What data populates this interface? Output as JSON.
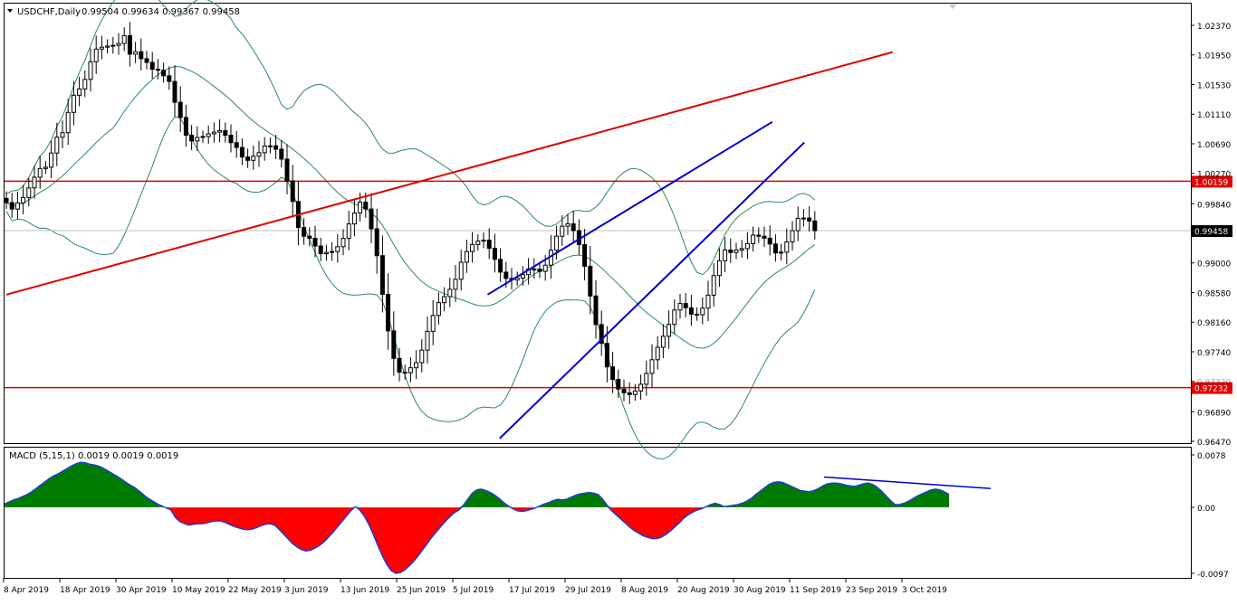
{
  "window": {
    "menu_arrow_icon": "triangle-down-icon",
    "symbol": "USDCHF,Daily",
    "ohlc": "0.99504 0.99634 0.99367 0.99458"
  },
  "macd_header": "MACD (5,15,1) 0.0019 0.0019 0.0019",
  "colors": {
    "background": "#ffffff",
    "candle_up_body": "#ffffff",
    "candle_down_body": "#000000",
    "bollinger": "#2e8b57",
    "horizontal_level": "#e00000",
    "red_trendline": "#e00000",
    "channel_lines": "#0000cc",
    "macd_positive": "#007a00",
    "macd_negative": "#ff0000",
    "macd_line": "#1e3cd0",
    "price_label_bg": "#e00000",
    "current_label_bg": "#000000"
  },
  "chart_data": [
    {
      "type": "candlestick",
      "symbol": "USDCHF",
      "timeframe": "Daily",
      "y_ticks": [
        "1.02370",
        "1.01950",
        "1.01530",
        "1.01110",
        "1.00690",
        "1.00270",
        "0.99840",
        "0.99420",
        "0.99000",
        "0.98580",
        "0.98160",
        "0.97740",
        "0.97320",
        "0.96890",
        "0.96470"
      ],
      "ylim": [
        0.9647,
        1.0268
      ],
      "x_ticks": [
        "8 Apr 2019",
        "18 Apr 2019",
        "30 Apr 2019",
        "10 May 2019",
        "22 May 2019",
        "3 Jun 2019",
        "13 Jun 2019",
        "25 Jun 2019",
        "5 Jul 2019",
        "17 Jul 2019",
        "29 Jul 2019",
        "8 Aug 2019",
        "20 Aug 2019",
        "30 Aug 2019",
        "11 Sep 2019",
        "23 Sep 2019",
        "3 Oct 2019"
      ],
      "horizontal_levels": [
        {
          "label": "1.00159",
          "value": 1.00159
        },
        {
          "label": "0.97232",
          "value": 0.97232
        }
      ],
      "current_price": {
        "label": "0.99458",
        "value": 0.99458
      },
      "closes": [
        0.99856,
        0.99764,
        0.99852,
        0.99928,
        1.00064,
        1.00216,
        1.00339,
        1.00358,
        1.00559,
        1.00783,
        1.00847,
        1.01135,
        1.01378,
        1.01468,
        1.01603,
        1.01853,
        1.02033,
        1.0206,
        1.02075,
        1.02086,
        1.02112,
        1.02223,
        1.01961,
        1.01996,
        1.01897,
        1.01844,
        1.01747,
        1.01733,
        1.01654,
        1.01574,
        1.01279,
        1.01063,
        1.00811,
        1.0073,
        1.0078,
        1.00793,
        1.00831,
        1.00855,
        1.00876,
        1.00811,
        1.00706,
        1.00638,
        1.00502,
        1.00455,
        1.00515,
        1.00563,
        1.00659,
        1.00661,
        1.00613,
        1.00472,
        1.00163,
        0.99872,
        0.99502,
        0.99379,
        0.99349,
        0.9924,
        0.99131,
        0.99149,
        0.99162,
        0.9923,
        0.99347,
        0.99553,
        0.99708,
        0.99863,
        0.99765,
        0.99484,
        0.99103,
        0.98554,
        0.98036,
        0.97646,
        0.97451,
        0.97443,
        0.97513,
        0.97585,
        0.97763,
        0.9803,
        0.98255,
        0.98437,
        0.98522,
        0.98626,
        0.98768,
        0.9901,
        0.99161,
        0.99262,
        0.9931,
        0.99323,
        0.99208,
        0.99051,
        0.98869,
        0.9878,
        0.98758,
        0.98786,
        0.98834,
        0.98913,
        0.98912,
        0.9888,
        0.98968,
        0.9918,
        0.99379,
        0.99521,
        0.99554,
        0.99458,
        0.9926,
        0.98953,
        0.98531,
        0.98126,
        0.97859,
        0.97526,
        0.97347,
        0.97211,
        0.97158,
        0.97133,
        0.97184,
        0.97279,
        0.97433,
        0.97627,
        0.97804,
        0.9796,
        0.98128,
        0.98332,
        0.98425,
        0.98363,
        0.98273,
        0.98265,
        0.98359,
        0.98543,
        0.98821,
        0.99031,
        0.99184,
        0.99148,
        0.99183,
        0.99203,
        0.99273,
        0.99394,
        0.99379,
        0.99351,
        0.99269,
        0.99141,
        0.99153,
        0.99299,
        0.99458,
        0.99633,
        0.99637,
        0.99596,
        0.99458
      ],
      "bollinger_bands": [
        "upper",
        "middle",
        "lower"
      ],
      "trendlines": [
        {
          "name": "red-trendline",
          "from": {
            "date": "8 Apr 2019",
            "price": 0.9855
          },
          "to": {
            "date": "15 Nov 2019",
            "price": 1.0199
          }
        },
        {
          "name": "channel-upper",
          "from": {
            "date": "6 Aug 2019",
            "price": 0.9855
          },
          "to": {
            "date": "16 Oct 2019",
            "price": 1.01
          }
        },
        {
          "name": "channel-lower",
          "from": {
            "date": "9 Aug 2019",
            "price": 0.9651
          },
          "to": {
            "date": "24 Oct 2019",
            "price": 1.0071
          }
        }
      ]
    },
    {
      "type": "area",
      "name": "MACD (5,15,1)",
      "y_ticks": [
        "0.0078",
        "0.00",
        "-0.0097"
      ],
      "ylim": [
        -0.0097,
        0.0078
      ],
      "values": [
        0.0005,
        0.0008,
        0.0011,
        0.0013,
        0.0016,
        0.0019,
        0.0023,
        0.0028,
        0.0033,
        0.0038,
        0.0043,
        0.0047,
        0.005,
        0.0054,
        0.0058,
        0.0062,
        0.0065,
        0.0067,
        0.0066,
        0.0064,
        0.0063,
        0.0061,
        0.0058,
        0.0054,
        0.005,
        0.0046,
        0.0042,
        0.0037,
        0.0033,
        0.0029,
        0.0024,
        0.0018,
        0.0013,
        0.0009,
        0.0005,
        0.0002,
        -0.0001,
        -0.0004,
        -0.0015,
        -0.0021,
        -0.0024,
        -0.0026,
        -0.0025,
        -0.0024,
        -0.0024,
        -0.0023,
        -0.0021,
        -0.002,
        -0.002,
        -0.0022,
        -0.0025,
        -0.0028,
        -0.003,
        -0.0032,
        -0.0033,
        -0.0032,
        -0.003,
        -0.0027,
        -0.0025,
        -0.0024,
        -0.0026,
        -0.0032,
        -0.0039,
        -0.0046,
        -0.0053,
        -0.0058,
        -0.0062,
        -0.0064,
        -0.0063,
        -0.006,
        -0.0056,
        -0.0051,
        -0.0044,
        -0.0037,
        -0.0029,
        -0.0021,
        -0.0013,
        -0.0005,
        0.0001,
        -0.0004,
        -0.0013,
        -0.0025,
        -0.004,
        -0.0056,
        -0.0071,
        -0.0084,
        -0.0093,
        -0.0097,
        -0.0096,
        -0.0092,
        -0.0086,
        -0.0079,
        -0.0071,
        -0.0062,
        -0.0053,
        -0.0044,
        -0.0036,
        -0.0028,
        -0.0021,
        -0.0014,
        -0.0008,
        -0.0004,
        0.0003,
        0.0012,
        0.0021,
        0.0026,
        0.0027,
        0.0025,
        0.0022,
        0.0018,
        0.0013,
        0.0007,
        0.0002,
        -0.0002,
        -0.0005,
        -0.0006,
        -0.0005,
        -0.0003,
        -0.0001,
        0.0002,
        0.0005,
        0.0007,
        0.001,
        0.0012,
        0.0011,
        0.0012,
        0.0015,
        0.0018,
        0.002,
        0.0021,
        0.0022,
        0.0021,
        0.0019,
        0.0012,
        0.0003,
        -0.0005,
        -0.0011,
        -0.0017,
        -0.0023,
        -0.0029,
        -0.0034,
        -0.0038,
        -0.0042,
        -0.0044,
        -0.0046,
        -0.0046,
        -0.0044,
        -0.004,
        -0.0035,
        -0.0029,
        -0.0023,
        -0.0016,
        -0.0011,
        -0.0007,
        -0.0004,
        -0.0002,
        0.0001,
        0.0004,
        0.0006,
        0.0004,
        0.0001,
        0.0002,
        0.0003,
        0.0004,
        0.0006,
        0.0009,
        0.0013,
        0.0019,
        0.0024,
        0.0029,
        0.0034,
        0.0037,
        0.0038,
        0.0037,
        0.0034,
        0.0031,
        0.0028,
        0.0025,
        0.0024,
        0.0023,
        0.0025,
        0.0028,
        0.0032,
        0.0035,
        0.0036,
        0.0036,
        0.0035,
        0.0033,
        0.0032,
        0.0031,
        0.0033,
        0.0035,
        0.0036,
        0.0034,
        0.003,
        0.0024,
        0.0017,
        0.001,
        0.0004,
        0.0004,
        0.0006,
        0.0009,
        0.0013,
        0.0017,
        0.002,
        0.0023,
        0.0026,
        0.0027,
        0.0026,
        0.0023,
        0.0019
      ],
      "trendline": {
        "name": "macd-divergence-line"
      }
    }
  ]
}
